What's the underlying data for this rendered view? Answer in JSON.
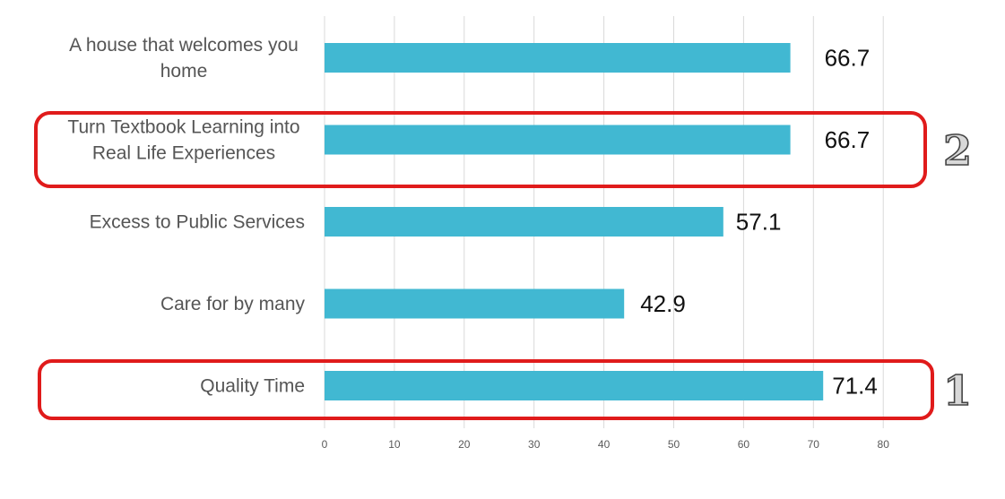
{
  "chart_data": {
    "type": "bar",
    "orientation": "horizontal",
    "categories": [
      "A house that welcomes you home",
      "Turn Textbook Learning into Real Life Experiences",
      "Excess to Public Services",
      "Care for by many",
      "Quality Time"
    ],
    "category_label_lines": [
      [
        "A house that welcomes you",
        "home"
      ],
      [
        "Turn Textbook Learning into",
        "Real Life Experiences"
      ],
      [
        "Excess to Public Services"
      ],
      [
        "Care for by many"
      ],
      [
        "Quality Time"
      ]
    ],
    "values": [
      66.7,
      66.7,
      57.1,
      42.9,
      71.4
    ],
    "data_labels": [
      "66.7",
      "66.7",
      "57.1",
      "42.9",
      "71.4"
    ],
    "x_ticks": [
      "0",
      "10",
      "20",
      "30",
      "40",
      "50",
      "60",
      "70",
      "80"
    ],
    "xlim": [
      0,
      80
    ],
    "title": "",
    "xlabel": "",
    "ylabel": "",
    "grid": "vertical",
    "legend": "none",
    "bar_color": "#41b8d2",
    "highlights": [
      {
        "category": "Turn Textbook Learning into Real Life Experiences",
        "rank": "2",
        "color": "#e01b1b"
      },
      {
        "category": "Quality Time",
        "rank": "1",
        "color": "#e01b1b"
      }
    ]
  }
}
